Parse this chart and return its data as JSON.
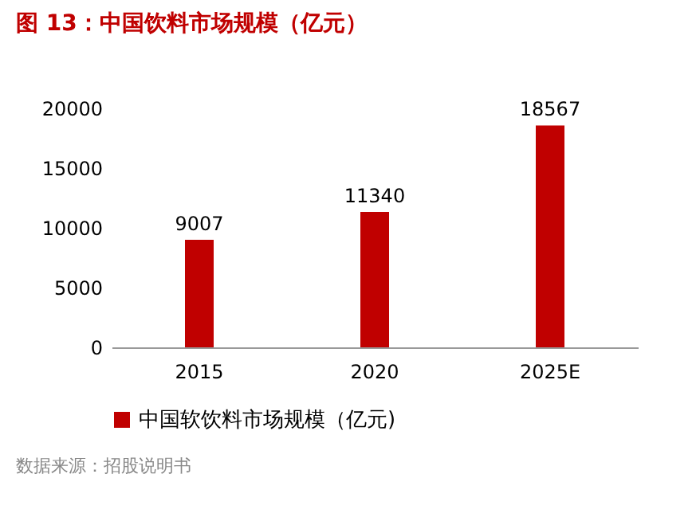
{
  "chart_data": {
    "type": "bar",
    "title": "图 13：中国饮料市场规模（亿元）",
    "categories": [
      "2015",
      "2020",
      "2025E"
    ],
    "series": [
      {
        "name": "中国软饮料市场规模（亿元)",
        "color": "#c00000",
        "values": [
          9007,
          11340,
          18567
        ]
      }
    ],
    "ylim": [
      0,
      20000
    ],
    "yticks": [
      0,
      5000,
      10000,
      15000,
      20000
    ],
    "grid": false,
    "legend": "bottom",
    "data_labels": true,
    "annotations": [
      "数据来源：招股说明书"
    ]
  }
}
